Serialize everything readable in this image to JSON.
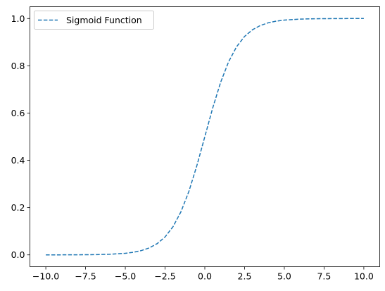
{
  "chart_data": {
    "type": "line",
    "title": "",
    "xlabel": "",
    "ylabel": "",
    "xlim": [
      -11.0,
      11.0
    ],
    "ylim": [
      -0.05,
      1.05
    ],
    "x_ticks": [
      -10.0,
      -7.5,
      -5.0,
      -2.5,
      0.0,
      2.5,
      5.0,
      7.5,
      10.0
    ],
    "x_tick_labels": [
      "−10.0",
      "−7.5",
      "−5.0",
      "−2.5",
      "0.0",
      "2.5",
      "5.0",
      "7.5",
      "10.0"
    ],
    "y_ticks": [
      0.0,
      0.2,
      0.4,
      0.6,
      0.8,
      1.0
    ],
    "y_tick_labels": [
      "0.0",
      "0.2",
      "0.4",
      "0.6",
      "0.8",
      "1.0"
    ],
    "grid": false,
    "legend": {
      "placement": "top-left"
    },
    "series": [
      {
        "name": "Sigmoid Function",
        "color": "#1f77b4",
        "line_style": "dashed",
        "x": [
          -10,
          -9,
          -8,
          -7,
          -6,
          -5,
          -4.5,
          -4,
          -3.5,
          -3,
          -2.5,
          -2,
          -1.5,
          -1,
          -0.5,
          0,
          0.5,
          1,
          1.5,
          2,
          2.5,
          3,
          3.5,
          4,
          4.5,
          5,
          6,
          7,
          8,
          9,
          10
        ],
        "y": [
          5e-05,
          0.00012,
          0.00034,
          0.00091,
          0.00247,
          0.00669,
          0.01099,
          0.01799,
          0.02931,
          0.04743,
          0.07586,
          0.1192,
          0.18243,
          0.26894,
          0.37754,
          0.5,
          0.62246,
          0.73106,
          0.81757,
          0.8808,
          0.92414,
          0.95257,
          0.97069,
          0.98201,
          0.98901,
          0.99331,
          0.99753,
          0.99909,
          0.99966,
          0.99988,
          0.99995
        ]
      }
    ]
  }
}
